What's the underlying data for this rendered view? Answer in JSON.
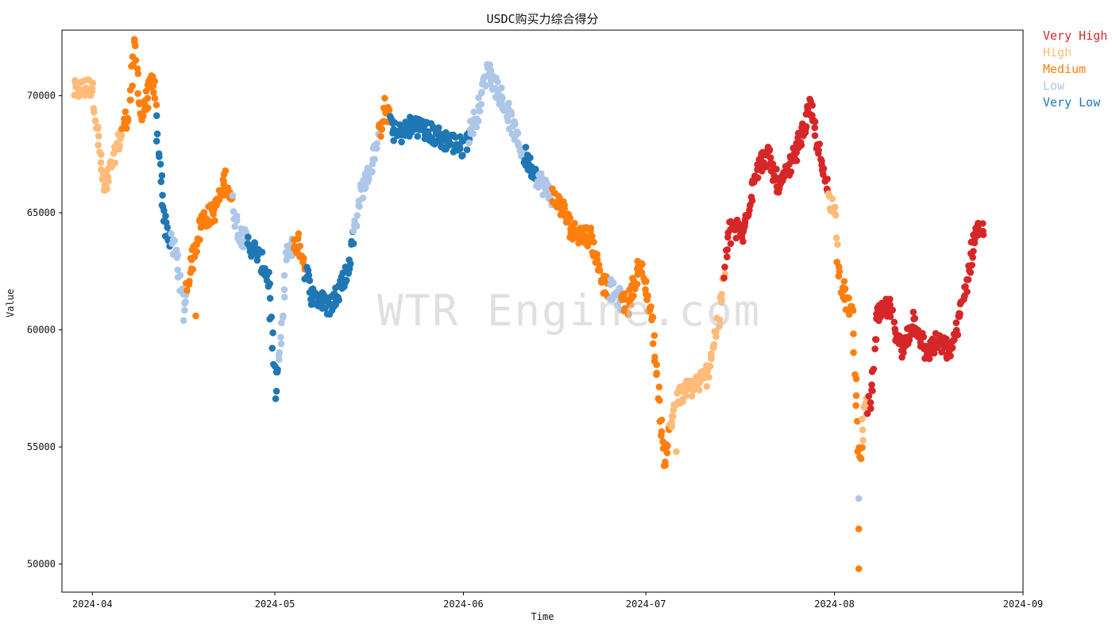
{
  "chart_data": {
    "type": "scatter",
    "title": "USDC购买力综合得分",
    "xlabel": "Time",
    "ylabel": "Value",
    "watermark": "WTR Engine.com",
    "x_ticks": [
      "2024-04",
      "2024-05",
      "2024-06",
      "2024-07",
      "2024-08",
      "2024-09"
    ],
    "y_ticks": [
      50000,
      55000,
      60000,
      65000,
      70000
    ],
    "xlim": [
      "2024-03-27",
      "2024-09-01"
    ],
    "ylim": [
      48800,
      72800
    ],
    "legend_position": "outside-top-right",
    "categories": [
      {
        "name": "Very High",
        "color": "#d62728"
      },
      {
        "name": "High",
        "color": "#ffbb78"
      },
      {
        "name": "Medium",
        "color": "#ff7f0e"
      },
      {
        "name": "Low",
        "color": "#aec7e8"
      },
      {
        "name": "Very Low",
        "color": "#1f77b4"
      }
    ],
    "series_path": [
      {
        "date": "2024-03-29",
        "value": 70200,
        "cat": "High"
      },
      {
        "date": "2024-04-01",
        "value": 70400,
        "cat": "High"
      },
      {
        "date": "2024-04-03",
        "value": 65800,
        "cat": "High"
      },
      {
        "date": "2024-04-05",
        "value": 67800,
        "cat": "High"
      },
      {
        "date": "2024-04-07",
        "value": 69300,
        "cat": "Medium"
      },
      {
        "date": "2024-04-08",
        "value": 72200,
        "cat": "Medium"
      },
      {
        "date": "2024-04-09",
        "value": 69000,
        "cat": "Medium"
      },
      {
        "date": "2024-04-11",
        "value": 70800,
        "cat": "Medium"
      },
      {
        "date": "2024-04-12",
        "value": 67200,
        "cat": "Very Low"
      },
      {
        "date": "2024-04-13",
        "value": 64500,
        "cat": "Very Low"
      },
      {
        "date": "2024-04-15",
        "value": 63000,
        "cat": "Low"
      },
      {
        "date": "2024-04-16",
        "value": 61000,
        "cat": "Low"
      },
      {
        "date": "2024-04-17",
        "value": 62500,
        "cat": "Medium"
      },
      {
        "date": "2024-04-19",
        "value": 64700,
        "cat": "Medium"
      },
      {
        "date": "2024-04-21",
        "value": 65000,
        "cat": "Medium"
      },
      {
        "date": "2024-04-23",
        "value": 66500,
        "cat": "Medium"
      },
      {
        "date": "2024-04-25",
        "value": 64200,
        "cat": "Low"
      },
      {
        "date": "2024-04-28",
        "value": 63300,
        "cat": "Very Low"
      },
      {
        "date": "2024-04-30",
        "value": 62200,
        "cat": "Very Low"
      },
      {
        "date": "2024-05-01",
        "value": 57500,
        "cat": "Very Low"
      },
      {
        "date": "2024-05-02",
        "value": 59500,
        "cat": "Low"
      },
      {
        "date": "2024-05-03",
        "value": 63500,
        "cat": "Low"
      },
      {
        "date": "2024-05-05",
        "value": 63700,
        "cat": "Medium"
      },
      {
        "date": "2024-05-07",
        "value": 61500,
        "cat": "Very Low"
      },
      {
        "date": "2024-05-10",
        "value": 61000,
        "cat": "Very Low"
      },
      {
        "date": "2024-05-13",
        "value": 62500,
        "cat": "Very Low"
      },
      {
        "date": "2024-05-15",
        "value": 65800,
        "cat": "Low"
      },
      {
        "date": "2024-05-17",
        "value": 67000,
        "cat": "Low"
      },
      {
        "date": "2024-05-19",
        "value": 69500,
        "cat": "Medium"
      },
      {
        "date": "2024-05-21",
        "value": 68300,
        "cat": "Very Low"
      },
      {
        "date": "2024-05-24",
        "value": 68800,
        "cat": "Very Low"
      },
      {
        "date": "2024-05-28",
        "value": 68200,
        "cat": "Very Low"
      },
      {
        "date": "2024-06-01",
        "value": 67800,
        "cat": "Very Low"
      },
      {
        "date": "2024-06-03",
        "value": 69000,
        "cat": "Low"
      },
      {
        "date": "2024-06-05",
        "value": 71200,
        "cat": "Low"
      },
      {
        "date": "2024-06-08",
        "value": 69500,
        "cat": "Low"
      },
      {
        "date": "2024-06-10",
        "value": 68000,
        "cat": "Low"
      },
      {
        "date": "2024-06-12",
        "value": 67000,
        "cat": "Very Low"
      },
      {
        "date": "2024-06-14",
        "value": 66200,
        "cat": "Low"
      },
      {
        "date": "2024-06-17",
        "value": 65300,
        "cat": "Medium"
      },
      {
        "date": "2024-06-19",
        "value": 64200,
        "cat": "Medium"
      },
      {
        "date": "2024-06-22",
        "value": 64000,
        "cat": "Medium"
      },
      {
        "date": "2024-06-24",
        "value": 62000,
        "cat": "Medium"
      },
      {
        "date": "2024-06-26",
        "value": 61500,
        "cat": "Low"
      },
      {
        "date": "2024-06-28",
        "value": 61000,
        "cat": "Medium"
      },
      {
        "date": "2024-06-30",
        "value": 62800,
        "cat": "Medium"
      },
      {
        "date": "2024-07-02",
        "value": 60500,
        "cat": "Medium"
      },
      {
        "date": "2024-07-04",
        "value": 54500,
        "cat": "Medium"
      },
      {
        "date": "2024-07-06",
        "value": 57000,
        "cat": "High"
      },
      {
        "date": "2024-07-08",
        "value": 57500,
        "cat": "High"
      },
      {
        "date": "2024-07-11",
        "value": 58000,
        "cat": "High"
      },
      {
        "date": "2024-07-13",
        "value": 60500,
        "cat": "High"
      },
      {
        "date": "2024-07-15",
        "value": 64500,
        "cat": "Very High"
      },
      {
        "date": "2024-07-17",
        "value": 64000,
        "cat": "Very High"
      },
      {
        "date": "2024-07-19",
        "value": 66800,
        "cat": "Very High"
      },
      {
        "date": "2024-07-21",
        "value": 67500,
        "cat": "Very High"
      },
      {
        "date": "2024-07-23",
        "value": 66000,
        "cat": "Very High"
      },
      {
        "date": "2024-07-26",
        "value": 67800,
        "cat": "Very High"
      },
      {
        "date": "2024-07-28",
        "value": 69500,
        "cat": "Very High"
      },
      {
        "date": "2024-07-30",
        "value": 66800,
        "cat": "Very High"
      },
      {
        "date": "2024-08-01",
        "value": 65000,
        "cat": "High"
      },
      {
        "date": "2024-08-02",
        "value": 62000,
        "cat": "Medium"
      },
      {
        "date": "2024-08-04",
        "value": 60500,
        "cat": "Medium"
      },
      {
        "date": "2024-08-05",
        "value": 54500,
        "cat": "Medium"
      },
      {
        "date": "2024-08-06",
        "value": 56500,
        "cat": "High"
      },
      {
        "date": "2024-08-07",
        "value": 57000,
        "cat": "Very High"
      },
      {
        "date": "2024-08-08",
        "value": 60500,
        "cat": "Very High"
      },
      {
        "date": "2024-08-10",
        "value": 61000,
        "cat": "Very High"
      },
      {
        "date": "2024-08-12",
        "value": 59000,
        "cat": "Very High"
      },
      {
        "date": "2024-08-14",
        "value": 60500,
        "cat": "Very High"
      },
      {
        "date": "2024-08-16",
        "value": 59000,
        "cat": "Very High"
      },
      {
        "date": "2024-08-18",
        "value": 59500,
        "cat": "Very High"
      },
      {
        "date": "2024-08-20",
        "value": 59000,
        "cat": "Very High"
      },
      {
        "date": "2024-08-22",
        "value": 61000,
        "cat": "Very High"
      },
      {
        "date": "2024-08-24",
        "value": 64000,
        "cat": "Very High"
      },
      {
        "date": "2024-08-25",
        "value": 64300,
        "cat": "Very High"
      }
    ],
    "spike_points": [
      {
        "date": "2024-08-05",
        "value": 49800,
        "cat": "Medium"
      },
      {
        "date": "2024-08-05",
        "value": 51500,
        "cat": "Medium"
      },
      {
        "date": "2024-08-05",
        "value": 52800,
        "cat": "Low"
      },
      {
        "date": "2024-04-18",
        "value": 60600,
        "cat": "Medium"
      },
      {
        "date": "2024-04-16",
        "value": 60400,
        "cat": "Low"
      },
      {
        "date": "2024-07-04",
        "value": 54200,
        "cat": "Medium"
      },
      {
        "date": "2024-07-06",
        "value": 54800,
        "cat": "High"
      }
    ]
  },
  "legend_labels": {
    "very_high": "Very High",
    "high": "High",
    "medium": "Medium",
    "low": "Low",
    "very_low": "Very Low"
  }
}
